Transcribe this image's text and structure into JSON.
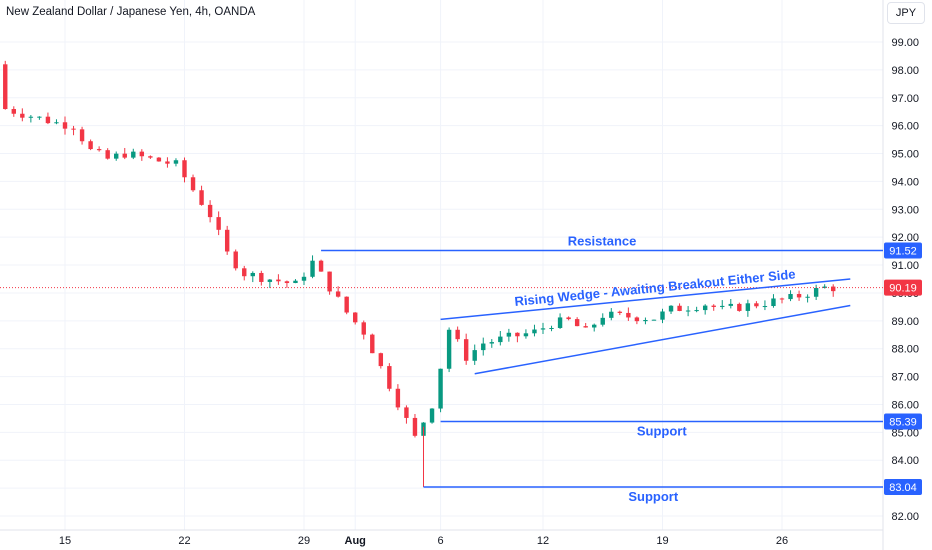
{
  "chart_data": {
    "type": "candlestick",
    "title": "New Zealand Dollar / Japanese Yen, 4h, OANDA",
    "currency": "JPY",
    "ylim": [
      81.8,
      99.6
    ],
    "y_ticks": [
      "82.00",
      "83.00",
      "84.00",
      "85.00",
      "86.00",
      "87.00",
      "88.00",
      "89.00",
      "90.00",
      "91.00",
      "92.00",
      "93.00",
      "94.00",
      "95.00",
      "96.00",
      "97.00",
      "98.00",
      "99.00"
    ],
    "x_ticks": [
      {
        "label": "15",
        "date": "2024-07-15"
      },
      {
        "label": "22",
        "date": "2024-07-22"
      },
      {
        "label": "29",
        "date": "2024-07-29"
      },
      {
        "label": "Aug",
        "date": "2024-08-01"
      },
      {
        "label": "6",
        "date": "2024-08-06"
      },
      {
        "label": "12",
        "date": "2024-08-12"
      },
      {
        "label": "19",
        "date": "2024-08-19"
      },
      {
        "label": "26",
        "date": "2024-08-26"
      }
    ],
    "close_path": [
      {
        "date": "2024-07-09",
        "price": 98.2
      },
      {
        "date": "2024-07-10",
        "price": 98.5
      },
      {
        "date": "2024-07-11",
        "price": 97.0
      },
      {
        "date": "2024-07-12",
        "price": 96.6
      },
      {
        "date": "2024-07-15",
        "price": 96.1
      },
      {
        "date": "2024-07-16",
        "price": 96.0
      },
      {
        "date": "2024-07-17",
        "price": 95.1
      },
      {
        "date": "2024-07-18",
        "price": 94.8
      },
      {
        "date": "2024-07-19",
        "price": 95.0
      },
      {
        "date": "2024-07-22",
        "price": 94.6
      },
      {
        "date": "2024-07-23",
        "price": 93.7
      },
      {
        "date": "2024-07-24",
        "price": 92.8
      },
      {
        "date": "2024-07-25",
        "price": 91.4
      },
      {
        "date": "2024-07-26",
        "price": 90.7
      },
      {
        "date": "2024-07-29",
        "price": 90.3
      },
      {
        "date": "2024-07-30",
        "price": 91.1
      },
      {
        "date": "2024-07-31",
        "price": 90.2
      },
      {
        "date": "2024-08-01",
        "price": 89.3
      },
      {
        "date": "2024-08-02",
        "price": 88.6
      },
      {
        "date": "2024-08-05",
        "price": 84.8
      },
      {
        "date": "2024-08-06",
        "price": 86.0
      },
      {
        "date": "2024-08-07",
        "price": 88.7
      },
      {
        "date": "2024-08-08",
        "price": 87.7
      },
      {
        "date": "2024-08-09",
        "price": 88.2
      },
      {
        "date": "2024-08-12",
        "price": 88.6
      },
      {
        "date": "2024-08-13",
        "price": 88.9
      },
      {
        "date": "2024-08-14",
        "price": 89.0
      },
      {
        "date": "2024-08-15",
        "price": 88.6
      },
      {
        "date": "2024-08-16",
        "price": 89.2
      },
      {
        "date": "2024-08-19",
        "price": 89.1
      },
      {
        "date": "2024-08-20",
        "price": 89.4
      },
      {
        "date": "2024-08-21",
        "price": 89.5
      },
      {
        "date": "2024-08-22",
        "price": 89.6
      },
      {
        "date": "2024-08-23",
        "price": 89.4
      },
      {
        "date": "2024-08-26",
        "price": 89.7
      },
      {
        "date": "2024-08-27",
        "price": 89.8
      },
      {
        "date": "2024-08-29",
        "price": 90.19
      }
    ],
    "current_price": {
      "label": "90.19",
      "value": 90.19,
      "color": "#f23645"
    },
    "levels": [
      {
        "name": "Resistance",
        "label": "Resistance",
        "value": 91.52,
        "value_label": "91.52",
        "start_date": "2024-07-30"
      },
      {
        "name": "Support",
        "label": "Support",
        "value": 85.39,
        "value_label": "85.39",
        "start_date": "2024-08-06"
      },
      {
        "name": "Support",
        "label": "Support",
        "value": 83.04,
        "value_label": "83.04",
        "start_date": "2024-08-05"
      }
    ],
    "wedge": {
      "label": "Rising Wedge - Awaiting Breakout Either Side",
      "upper": [
        {
          "date": "2024-08-06",
          "price": 89.05
        },
        {
          "date": "2024-08-30",
          "price": 90.5
        }
      ],
      "lower": [
        {
          "date": "2024-08-08",
          "price": 87.1
        },
        {
          "date": "2024-08-30",
          "price": 89.55
        }
      ]
    },
    "colors": {
      "up": "#089981",
      "down": "#f23645",
      "annotation": "#2962ff",
      "grid": "#f0f3fa",
      "text": "#131722",
      "axis_text": "#131722"
    }
  }
}
